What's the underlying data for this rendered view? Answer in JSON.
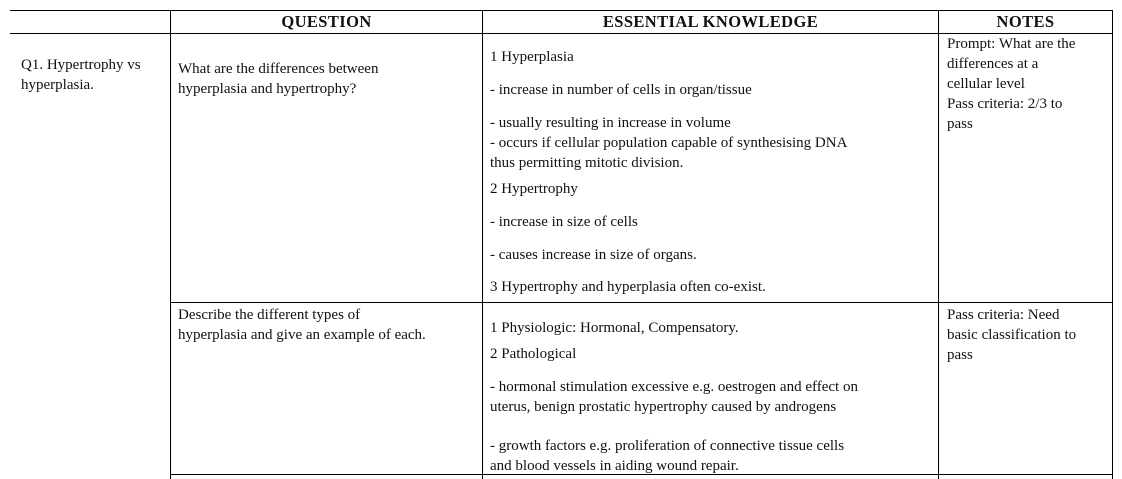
{
  "headers": {
    "col1": "",
    "question": "QUESTION",
    "essential_knowledge": "ESSENTIAL KNOWLEDGE",
    "notes": "NOTES"
  },
  "topic": {
    "line1": "Q1. Hypertrophy vs",
    "line2": "hyperplasia."
  },
  "rows": [
    {
      "question": {
        "line1": "What are the differences between",
        "line2": "hyperplasia and hypertrophy?"
      },
      "knowledge": {
        "h1": "1  Hyperplasia",
        "p1": "- increase in number of cells in organ/tissue",
        "p2": "- usually resulting in increase in volume",
        "p3a": "- occurs if cellular population capable of synthesising DNA",
        "p3b": "thus permitting mitotic division.",
        "h2": "2  Hypertrophy",
        "p4": "- increase in size of cells",
        "p5": "- causes increase in size of organs.",
        "p6": "3   Hypertrophy and hyperplasia often co-exist."
      },
      "notes": {
        "line1": "Prompt: What are the",
        "line2": "differences at a",
        "line3": "cellular level",
        "line4": "Pass criteria: 2/3 to",
        "line5": "pass"
      }
    },
    {
      "question": {
        "line1": "Describe the different types of",
        "line2": "hyperplasia and give an example of each."
      },
      "knowledge": {
        "p1": "1 Physiologic: Hormonal, Compensatory.",
        "p2": "2 Pathological",
        "p3a": "- hormonal stimulation excessive e.g. oestrogen and effect on",
        "p3b": "uterus, benign prostatic hypertrophy caused by androgens",
        "p4a": "- growth factors e.g. proliferation of connective tissue cells",
        "p4b": "and blood vessels in aiding wound repair."
      },
      "notes": {
        "line1": "Pass criteria: Need",
        "line2": "basic classification to",
        "line3": "pass"
      }
    }
  ]
}
